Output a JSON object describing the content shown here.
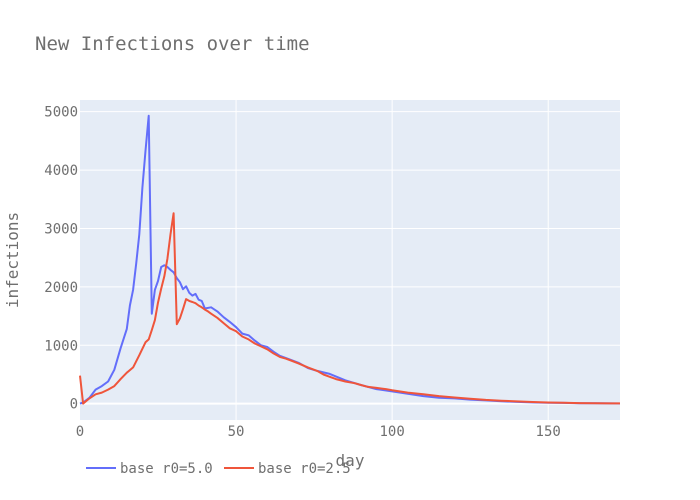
{
  "chart_data": {
    "type": "line",
    "title": "New Infections over time",
    "xlabel": "day",
    "ylabel": "infections",
    "xlim": [
      0,
      173
    ],
    "ylim": [
      -280,
      5200
    ],
    "xticks": [
      0,
      50,
      100,
      150
    ],
    "yticks": [
      0,
      1000,
      2000,
      3000,
      4000,
      5000
    ],
    "grid": true,
    "legend_position": "bottom-left",
    "plot_background": "#e5ecf6",
    "series": [
      {
        "name": "base r0=5.0",
        "color": "#636efa",
        "x": [
          0,
          1,
          3,
          5,
          7,
          9,
          11,
          13,
          15,
          16,
          17,
          18,
          19,
          20,
          21,
          22,
          23,
          24,
          25,
          26,
          27,
          28,
          29,
          30,
          31,
          32,
          33,
          34,
          35,
          36,
          37,
          38,
          39,
          40,
          42,
          44,
          46,
          48,
          50,
          52,
          54,
          56,
          58,
          60,
          62,
          64,
          66,
          68,
          70,
          73,
          76,
          80,
          85,
          90,
          95,
          100,
          105,
          110,
          115,
          120,
          125,
          130,
          135,
          140,
          145,
          150,
          155,
          160,
          165,
          170,
          173
        ],
        "y": [
          0,
          20,
          100,
          240,
          300,
          380,
          580,
          950,
          1280,
          1680,
          1950,
          2400,
          2900,
          3700,
          4330,
          4930,
          1540,
          1950,
          2100,
          2340,
          2370,
          2340,
          2290,
          2250,
          2150,
          2080,
          1960,
          2010,
          1900,
          1850,
          1880,
          1780,
          1760,
          1630,
          1650,
          1580,
          1480,
          1400,
          1310,
          1200,
          1170,
          1080,
          1000,
          970,
          890,
          820,
          780,
          740,
          700,
          610,
          560,
          510,
          400,
          320,
          250,
          210,
          170,
          130,
          100,
          90,
          70,
          55,
          40,
          30,
          22,
          16,
          12,
          8,
          6,
          4,
          3
        ]
      },
      {
        "name": "base r0=2.5",
        "color": "#ef553b",
        "x": [
          0,
          1,
          3,
          5,
          7,
          9,
          11,
          13,
          15,
          17,
          19,
          21,
          22,
          23,
          24,
          25,
          26,
          27,
          28,
          29,
          30,
          31,
          32,
          33,
          34,
          35,
          36,
          37,
          38,
          39,
          40,
          41,
          42,
          44,
          46,
          48,
          50,
          52,
          54,
          56,
          58,
          60,
          62,
          64,
          66,
          68,
          70,
          73,
          76,
          78,
          80,
          82,
          85,
          88,
          90,
          92,
          95,
          98,
          100,
          105,
          110,
          115,
          120,
          125,
          130,
          135,
          140,
          145,
          150,
          155,
          160,
          165,
          170,
          173
        ],
        "y": [
          480,
          0,
          90,
          160,
          190,
          240,
          300,
          420,
          530,
          620,
          830,
          1050,
          1100,
          1260,
          1430,
          1730,
          1970,
          2180,
          2480,
          2900,
          3260,
          1360,
          1460,
          1620,
          1790,
          1760,
          1740,
          1720,
          1680,
          1650,
          1610,
          1580,
          1540,
          1470,
          1380,
          1290,
          1240,
          1150,
          1100,
          1030,
          980,
          930,
          860,
          800,
          770,
          730,
          690,
          620,
          560,
          500,
          460,
          420,
          380,
          350,
          320,
          290,
          270,
          250,
          230,
          190,
          160,
          130,
          105,
          85,
          65,
          50,
          38,
          28,
          20,
          15,
          10,
          7,
          5,
          4
        ]
      }
    ]
  }
}
